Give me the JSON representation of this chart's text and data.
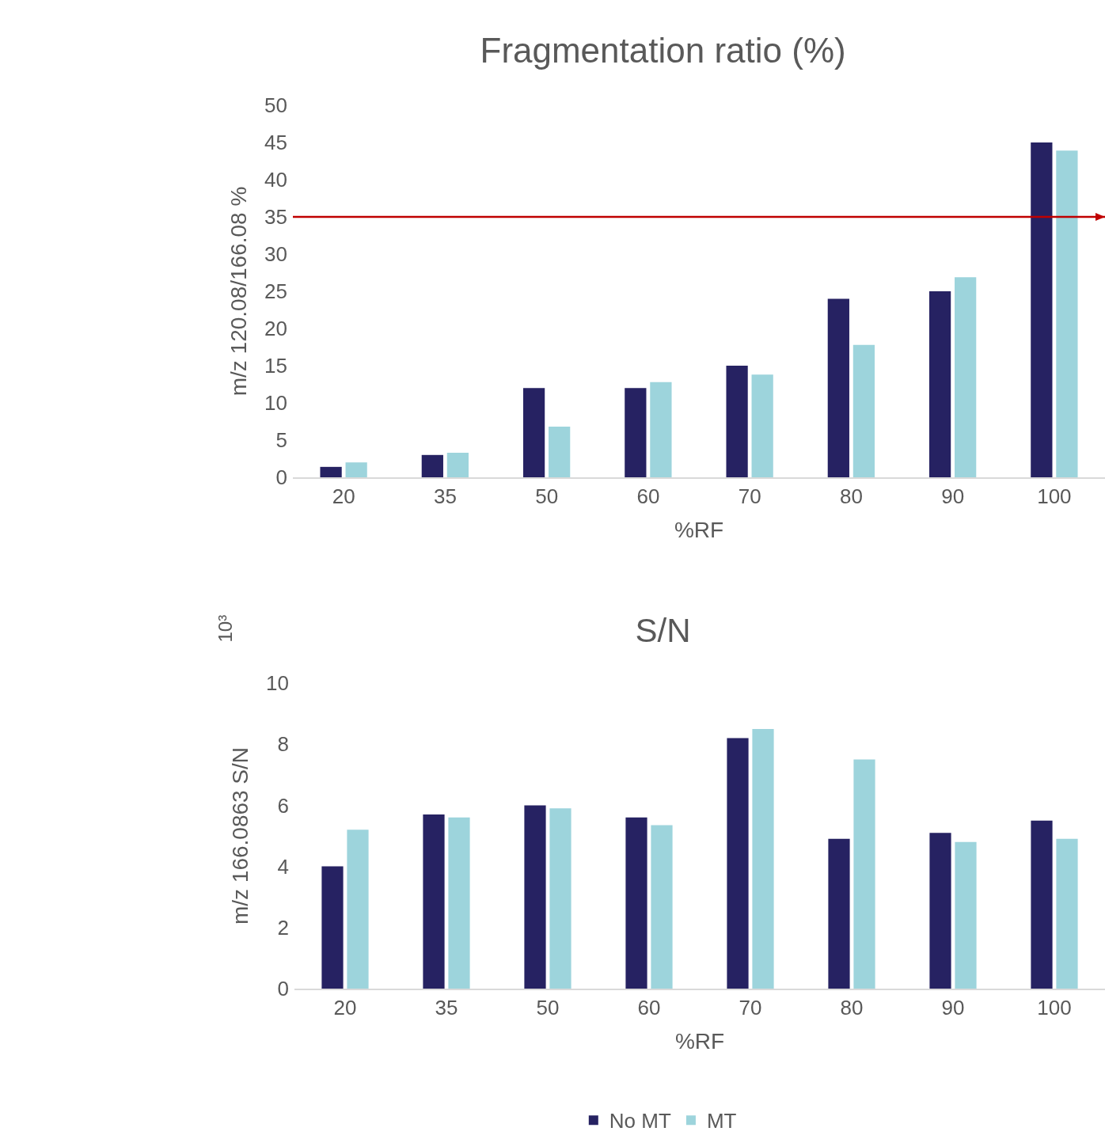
{
  "chart_data": [
    {
      "type": "bar",
      "title": "Fragmentation ratio (%)",
      "xlabel": "%RF",
      "ylabel": "m/z 120.08/166.08 %",
      "categories": [
        "20",
        "35",
        "50",
        "60",
        "70",
        "80",
        "90",
        "100"
      ],
      "series": [
        {
          "color": "#262262",
          "values": [
            1.4,
            3.0,
            12,
            12,
            15,
            24,
            25,
            45
          ]
        },
        {
          "color": "#9dd4dc",
          "values": [
            2.0,
            3.3,
            6.8,
            12.8,
            13.8,
            17.8,
            26.9,
            43.9
          ]
        }
      ],
      "ylim": [
        0,
        50
      ],
      "yticks": [
        0,
        5,
        10,
        15,
        20,
        25,
        30,
        35,
        40,
        45,
        50
      ],
      "grid": false,
      "legend": false,
      "ref_lines": [
        {
          "axis": "y",
          "value": 35,
          "color": "#c00000"
        }
      ]
    },
    {
      "type": "bar",
      "title": "S/N",
      "xlabel": "%RF",
      "ylabel": "m/z 166.0863 S/N",
      "categories": [
        "20",
        "35",
        "50",
        "60",
        "70",
        "80",
        "90",
        "100"
      ],
      "series": [
        {
          "name": "No MT",
          "color": "#262262",
          "values": [
            4.0,
            5.7,
            6.0,
            5.6,
            8.2,
            4.9,
            5.1,
            5.5
          ]
        },
        {
          "name": "MT",
          "color": "#9dd4dc",
          "values": [
            5.2,
            5.6,
            5.9,
            5.35,
            8.5,
            7.5,
            4.8,
            4.9
          ]
        }
      ],
      "ylim": [
        0,
        10
      ],
      "yticks": [
        0,
        2,
        4,
        6,
        8,
        10
      ],
      "grid": false,
      "legend": "bottom",
      "annotations": [
        "10³"
      ]
    }
  ]
}
